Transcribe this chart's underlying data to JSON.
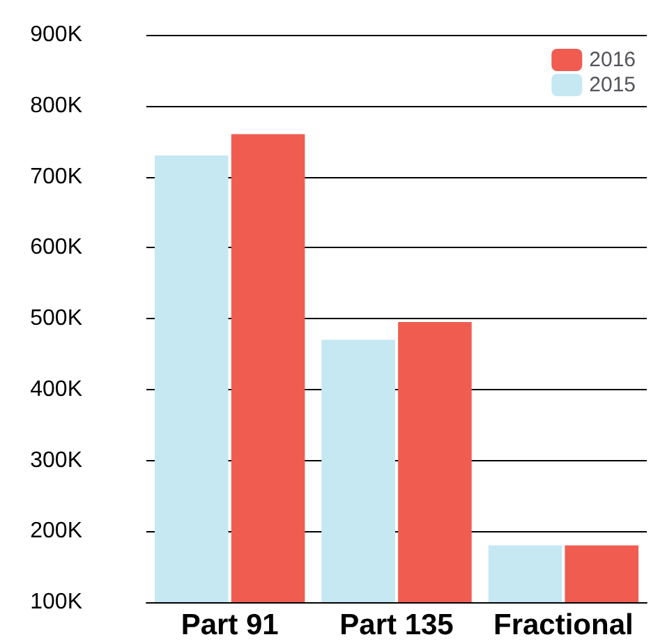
{
  "chart_data": {
    "type": "bar",
    "categories": [
      "Part 91",
      "Part 135",
      "Fractional"
    ],
    "series": [
      {
        "name": "2015",
        "color": "#c5e8f3",
        "values": [
          730000,
          470000,
          180000
        ]
      },
      {
        "name": "2016",
        "color": "#f05d50",
        "values": [
          760000,
          495000,
          180000
        ]
      }
    ],
    "ylim": [
      100000,
      900000
    ],
    "yticks": [
      {
        "value": 100000,
        "label": "100K"
      },
      {
        "value": 200000,
        "label": "200K"
      },
      {
        "value": 300000,
        "label": "300K"
      },
      {
        "value": 400000,
        "label": "400K"
      },
      {
        "value": 500000,
        "label": "500K"
      },
      {
        "value": 600000,
        "label": "600K"
      },
      {
        "value": 700000,
        "label": "700K"
      },
      {
        "value": 800000,
        "label": "800K"
      },
      {
        "value": 900000,
        "label": "900K"
      }
    ],
    "grid": "y",
    "legend": "top right"
  }
}
